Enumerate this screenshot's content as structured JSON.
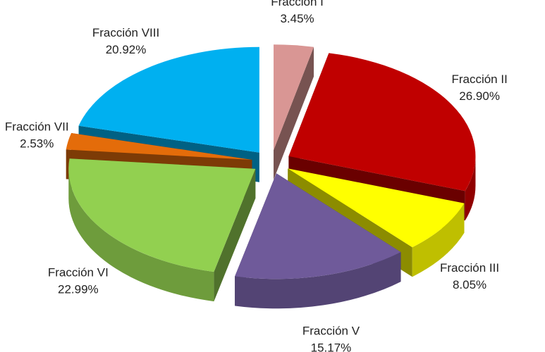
{
  "chart_data": {
    "type": "pie",
    "categories": [
      "Fracción I",
      "Fracción II",
      "Fracción III",
      "Fracción V",
      "Fracción VI",
      "Fracción VII",
      "Fracción VIII"
    ],
    "values": [
      3.45,
      26.9,
      8.05,
      15.17,
      22.99,
      2.53,
      20.92
    ],
    "value_labels": [
      "3.45%",
      "26.90%",
      "8.05%",
      "15.17%",
      "22.99%",
      "2.53%",
      "20.92%"
    ],
    "colors": [
      "#d99694",
      "#c00000",
      "#ffff00",
      "#6f5a9a",
      "#92d050",
      "#e46c0a",
      "#00b0f0"
    ]
  }
}
